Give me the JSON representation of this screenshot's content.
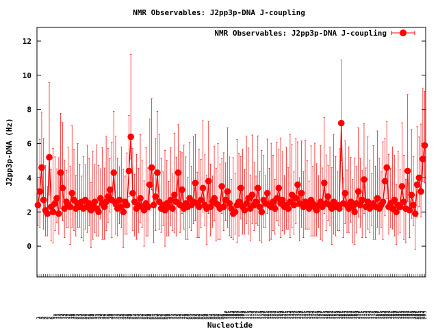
{
  "chart_data": {
    "type": "line",
    "title": "NMR Observables: J2pp3p-DNA J-coupling",
    "xlabel": "Nucleotide",
    "ylabel": "J2pp3p-DNA (Hz)",
    "ylim": [
      -1.8,
      12.8
    ],
    "yticks": [
      0,
      2,
      4,
      6,
      8,
      10,
      12
    ],
    "grid": false,
    "legend_position": "top-right",
    "series": [
      {
        "name": "NMR Observables: J2pp3p-DNA J-coupling",
        "color": "#ff0000",
        "values": [
          2.4,
          3.2,
          4.6,
          2.7,
          2.1,
          1.9,
          5.2,
          2.3,
          2.0,
          2.5,
          2.8,
          1.9,
          4.3,
          3.4,
          2.2,
          2.6,
          2.4,
          2.3,
          3.1,
          2.7,
          2.2,
          2.5,
          2.3,
          2.6,
          2.2,
          2.7,
          2.3,
          2.5,
          2.1,
          2.4,
          2.6,
          2.2,
          2.0,
          2.8,
          2.5,
          2.3,
          2.6,
          2.9,
          3.3,
          2.7,
          4.3,
          2.5,
          2.2,
          2.7,
          2.3,
          2.0,
          2.6,
          2.4,
          4.4,
          6.4,
          3.1,
          2.6,
          2.2,
          2.4,
          2.8,
          2.3,
          2.1,
          2.5,
          2.3,
          3.6,
          4.6,
          2.4,
          2.9,
          4.3,
          2.6,
          2.2,
          2.4,
          2.1,
          2.5,
          2.3,
          2.7,
          2.2,
          3.0,
          2.6,
          4.3,
          2.4,
          3.3,
          2.2,
          2.5,
          2.3,
          2.8,
          2.4,
          2.6,
          3.7,
          2.5,
          2.3,
          2.7,
          3.4,
          2.4,
          2.2,
          3.8,
          2.3,
          2.6,
          2.8,
          2.5,
          2.4,
          2.2,
          3.5,
          2.3,
          2.7,
          3.2,
          2.5,
          2.2,
          1.9,
          2.0,
          2.4,
          2.6,
          3.4,
          2.3,
          2.1,
          2.5,
          2.8,
          2.2,
          3.0,
          2.4,
          2.6,
          3.4,
          2.3,
          2.0,
          2.7,
          2.5,
          3.1,
          2.4,
          2.3,
          2.6,
          2.2,
          2.8,
          3.4,
          2.5,
          2.7,
          2.3,
          2.4,
          2.2,
          2.6,
          3.0,
          2.4,
          2.8,
          3.6,
          2.5,
          3.1,
          2.3,
          2.6,
          2.4,
          2.2,
          2.7,
          2.5,
          2.3,
          2.1,
          2.4,
          2.6,
          2.3,
          3.7,
          2.5,
          2.9,
          2.4,
          2.2,
          2.6,
          2.3,
          2.4,
          2.2,
          7.2,
          2.5,
          3.1,
          2.4,
          2.2,
          2.6,
          2.3,
          2.0,
          2.5,
          3.2,
          2.4,
          2.7,
          3.9,
          2.3,
          2.6,
          2.2,
          2.4,
          2.5,
          2.3,
          2.8,
          2.2,
          2.4,
          2.6,
          3.8,
          4.6,
          2.3,
          2.5,
          2.2,
          2.7,
          2.0,
          2.4,
          2.3,
          3.5,
          2.6,
          2.2,
          4.4,
          2.1,
          3.0,
          2.4,
          1.9,
          3.6,
          4.0,
          3.2,
          5.1,
          5.9
        ]
      }
    ]
  }
}
